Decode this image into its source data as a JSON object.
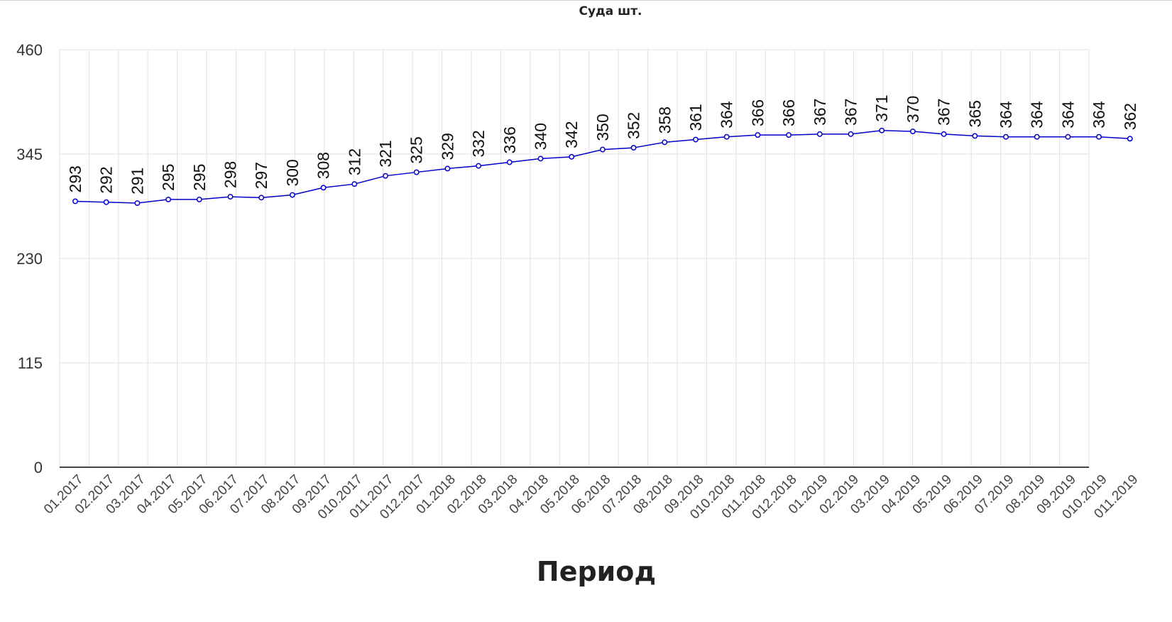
{
  "chart_data": {
    "type": "line",
    "title": "Суда шт.",
    "xlabel": "Период",
    "ylabel": "",
    "ylim": [
      0,
      460
    ],
    "yticks": [
      0,
      115,
      230,
      345,
      460
    ],
    "grid": true,
    "categories": [
      "01.2017",
      "02.2017",
      "03.2017",
      "04.2017",
      "05.2017",
      "06.2017",
      "07.2017",
      "08.2017",
      "09.2017",
      "010.2017",
      "011.2017",
      "012.2017",
      "01.2018",
      "02.2018",
      "03.2018",
      "04.2018",
      "05.2018",
      "06.2018",
      "07.2018",
      "08.2018",
      "09.2018",
      "010.2018",
      "011.2018",
      "012.2018",
      "01.2019",
      "02.2019",
      "03.2019",
      "04.2019",
      "05.2019",
      "06.2019",
      "07.2019",
      "08.2019",
      "09.2019",
      "010.2019",
      "011.2019"
    ],
    "series": [
      {
        "values": [
          293,
          292,
          291,
          295,
          295,
          298,
          297,
          300,
          308,
          312,
          321,
          325,
          329,
          332,
          336,
          340,
          342,
          350,
          352,
          358,
          361,
          364,
          366,
          366,
          367,
          367,
          371,
          370,
          367,
          365,
          364,
          364,
          364,
          364,
          362
        ]
      }
    ],
    "colors": {
      "line": "#0000cc",
      "marker_fill": "#ffffff",
      "grid": "#e2e2e2",
      "axis": "#444444"
    }
  }
}
